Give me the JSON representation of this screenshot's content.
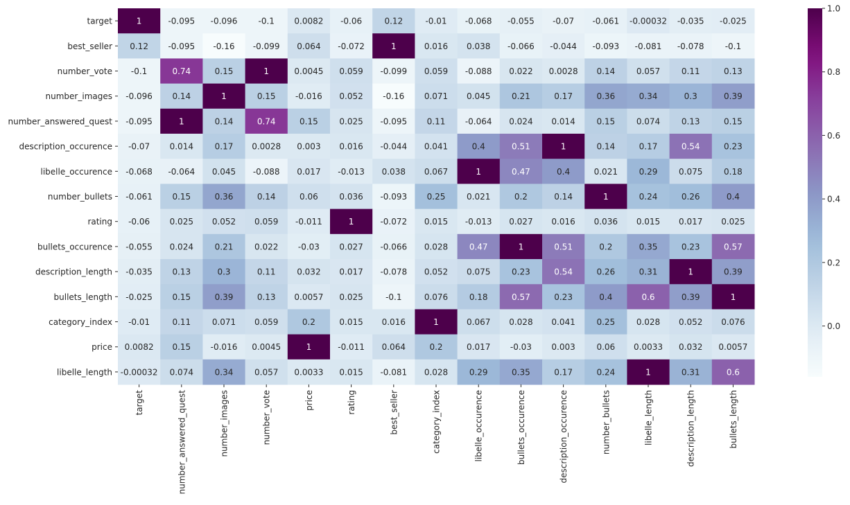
{
  "chart_data": {
    "type": "heatmap",
    "title": "",
    "xlabel": "",
    "ylabel": "",
    "colormap": "BuPu",
    "color_range": [
      -0.16,
      1.0
    ],
    "colorbar_ticks": [
      {
        "value": 1.0,
        "label": "1.0"
      },
      {
        "value": 0.8,
        "label": "0.8"
      },
      {
        "value": 0.6,
        "label": "0.6"
      },
      {
        "value": 0.4,
        "label": "0.4"
      },
      {
        "value": 0.2,
        "label": "0.2"
      },
      {
        "value": 0.0,
        "label": "0.0"
      }
    ],
    "row_labels": [
      "target",
      "best_seller",
      "number_vote",
      "number_images",
      "number_answered_quest",
      "description_occurence",
      "libelle_occurence",
      "number_bullets",
      "rating",
      "bullets_occurence",
      "description_length",
      "bullets_length",
      "category_index",
      "price",
      "libelle_length"
    ],
    "col_labels": [
      "target",
      "number_answered_quest",
      "number_images",
      "number_vote",
      "price",
      "rating",
      "best_seller",
      "category_index",
      "libelle_occurence",
      "bullets_occurence",
      "description_occurence",
      "number_bullets",
      "libelle_length",
      "description_length",
      "bullets_length"
    ],
    "cells": [
      [
        "1",
        "-0.095",
        "-0.096",
        "-0.1",
        "0.0082",
        "-0.06",
        "0.12",
        "-0.01",
        "-0.068",
        "-0.055",
        "-0.07",
        "-0.061",
        "-0.00032",
        "-0.035",
        "-0.025"
      ],
      [
        "0.12",
        "-0.095",
        "-0.16",
        "-0.099",
        "0.064",
        "-0.072",
        "1",
        "0.016",
        "0.038",
        "-0.066",
        "-0.044",
        "-0.093",
        "-0.081",
        "-0.078",
        "-0.1"
      ],
      [
        "-0.1",
        "0.74",
        "0.15",
        "1",
        "0.0045",
        "0.059",
        "-0.099",
        "0.059",
        "-0.088",
        "0.022",
        "0.0028",
        "0.14",
        "0.057",
        "0.11",
        "0.13"
      ],
      [
        "-0.096",
        "0.14",
        "1",
        "0.15",
        "-0.016",
        "0.052",
        "-0.16",
        "0.071",
        "0.045",
        "0.21",
        "0.17",
        "0.36",
        "0.34",
        "0.3",
        "0.39"
      ],
      [
        "-0.095",
        "1",
        "0.14",
        "0.74",
        "0.15",
        "0.025",
        "-0.095",
        "0.11",
        "-0.064",
        "0.024",
        "0.014",
        "0.15",
        "0.074",
        "0.13",
        "0.15"
      ],
      [
        "-0.07",
        "0.014",
        "0.17",
        "0.0028",
        "0.003",
        "0.016",
        "-0.044",
        "0.041",
        "0.4",
        "0.51",
        "1",
        "0.14",
        "0.17",
        "0.54",
        "0.23"
      ],
      [
        "-0.068",
        "-0.064",
        "0.045",
        "-0.088",
        "0.017",
        "-0.013",
        "0.038",
        "0.067",
        "1",
        "0.47",
        "0.4",
        "0.021",
        "0.29",
        "0.075",
        "0.18"
      ],
      [
        "-0.061",
        "0.15",
        "0.36",
        "0.14",
        "0.06",
        "0.036",
        "-0.093",
        "0.25",
        "0.021",
        "0.2",
        "0.14",
        "1",
        "0.24",
        "0.26",
        "0.4"
      ],
      [
        "-0.06",
        "0.025",
        "0.052",
        "0.059",
        "-0.011",
        "1",
        "-0.072",
        "0.015",
        "-0.013",
        "0.027",
        "0.016",
        "0.036",
        "0.015",
        "0.017",
        "0.025"
      ],
      [
        "-0.055",
        "0.024",
        "0.21",
        "0.022",
        "-0.03",
        "0.027",
        "-0.066",
        "0.028",
        "0.47",
        "1",
        "0.51",
        "0.2",
        "0.35",
        "0.23",
        "0.57"
      ],
      [
        "-0.035",
        "0.13",
        "0.3",
        "0.11",
        "0.032",
        "0.017",
        "-0.078",
        "0.052",
        "0.075",
        "0.23",
        "0.54",
        "0.26",
        "0.31",
        "1",
        "0.39"
      ],
      [
        "-0.025",
        "0.15",
        "0.39",
        "0.13",
        "0.0057",
        "0.025",
        "-0.1",
        "0.076",
        "0.18",
        "0.57",
        "0.23",
        "0.4",
        "0.6",
        "0.39",
        "1"
      ],
      [
        "-0.01",
        "0.11",
        "0.071",
        "0.059",
        "0.2",
        "0.015",
        "0.016",
        "1",
        "0.067",
        "0.028",
        "0.041",
        "0.25",
        "0.028",
        "0.052",
        "0.076"
      ],
      [
        "0.0082",
        "0.15",
        "-0.016",
        "0.0045",
        "1",
        "-0.011",
        "0.064",
        "0.2",
        "0.017",
        "-0.03",
        "0.003",
        "0.06",
        "0.0033",
        "0.032",
        "0.0057"
      ],
      [
        "-0.00032",
        "0.074",
        "0.34",
        "0.057",
        "0.0033",
        "0.015",
        "-0.081",
        "0.028",
        "0.29",
        "0.35",
        "0.17",
        "0.24",
        "1",
        "0.31",
        "0.6"
      ]
    ]
  }
}
